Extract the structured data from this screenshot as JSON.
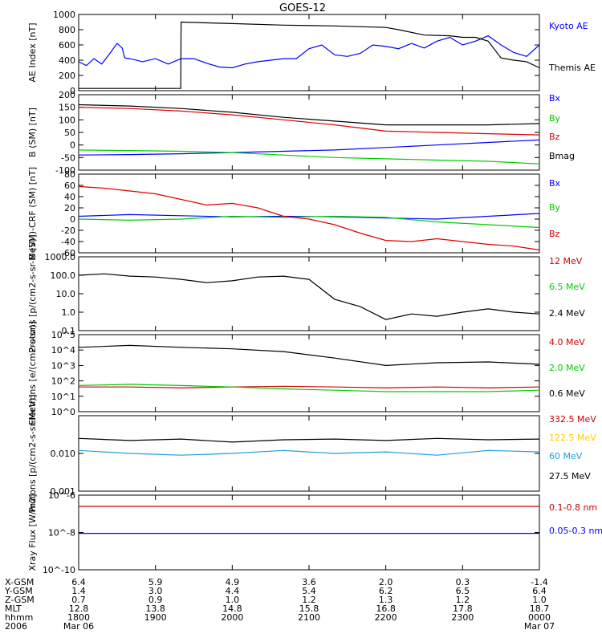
{
  "title": "GOES-12",
  "chart_data": [
    {
      "type": "line",
      "ylabel": "AE Index [nT]",
      "ylim": [
        0,
        1000
      ],
      "yscale": "linear",
      "ytick_labels": [
        "0",
        "200",
        "400",
        "600",
        "800",
        "1000"
      ],
      "ytick_values": [
        0,
        200,
        400,
        600,
        800,
        1000
      ],
      "series": [
        {
          "name": "Kyoto AE",
          "color": "#0000ff",
          "x": [
            0,
            3,
            6,
            9,
            12,
            15,
            17,
            18,
            20,
            25,
            30,
            35,
            40,
            45,
            50,
            55,
            60,
            65,
            70,
            75,
            80,
            85,
            90,
            95,
            100,
            105,
            110,
            115,
            120,
            125,
            130,
            135,
            140,
            145,
            150,
            155,
            160,
            165,
            170,
            175,
            180
          ],
          "y": [
            380,
            330,
            420,
            350,
            480,
            620,
            560,
            430,
            420,
            380,
            420,
            350,
            420,
            420,
            360,
            310,
            300,
            350,
            380,
            400,
            420,
            420,
            550,
            600,
            470,
            450,
            490,
            600,
            580,
            550,
            620,
            560,
            650,
            700,
            600,
            650,
            720,
            600,
            500,
            450,
            600
          ]
        },
        {
          "name": "Themis AE",
          "color": "#000000",
          "x": [
            0,
            20,
            39.9,
            40,
            60,
            80,
            100,
            120,
            125,
            135,
            145,
            150,
            155,
            160,
            165,
            170,
            175,
            180
          ],
          "y": [
            30,
            30,
            30,
            900,
            880,
            860,
            850,
            830,
            800,
            730,
            720,
            700,
            700,
            650,
            430,
            400,
            380,
            300
          ]
        }
      ]
    },
    {
      "type": "line",
      "ylabel": "B (SM) [nT]",
      "ylim": [
        -100,
        200
      ],
      "yscale": "linear",
      "ytick_labels": [
        "-100",
        "-50",
        "0",
        "50",
        "100",
        "150",
        "200"
      ],
      "ytick_values": [
        -100,
        -50,
        0,
        50,
        100,
        150,
        200
      ],
      "series": [
        {
          "name": "Bx",
          "color": "#0000ff",
          "x": [
            0,
            20,
            40,
            60,
            80,
            100,
            120,
            140,
            160,
            180
          ],
          "y": [
            -40,
            -38,
            -35,
            -30,
            -25,
            -20,
            -10,
            0,
            10,
            20
          ]
        },
        {
          "name": "By",
          "color": "#00cc00",
          "x": [
            0,
            20,
            40,
            60,
            80,
            100,
            120,
            140,
            160,
            180
          ],
          "y": [
            -20,
            -22,
            -25,
            -30,
            -40,
            -50,
            -55,
            -60,
            -65,
            -75
          ]
        },
        {
          "name": "Bz",
          "color": "#dd0000",
          "x": [
            0,
            20,
            40,
            60,
            80,
            100,
            120,
            140,
            160,
            180
          ],
          "y": [
            150,
            145,
            135,
            120,
            100,
            80,
            55,
            50,
            45,
            40
          ]
        },
        {
          "name": "Bmag",
          "color": "#000000",
          "x": [
            0,
            20,
            40,
            60,
            80,
            100,
            120,
            140,
            160,
            180
          ],
          "y": [
            160,
            155,
            145,
            130,
            110,
            95,
            80,
            80,
            80,
            85
          ]
        }
      ]
    },
    {
      "type": "line",
      "ylabel": "B (SM)-CRF (SM) [nT]",
      "ylim": [
        -60,
        80
      ],
      "yscale": "linear",
      "ytick_labels": [
        "-60",
        "-40",
        "-20",
        "0",
        "20",
        "40",
        "60",
        "80"
      ],
      "ytick_values": [
        -60,
        -40,
        -20,
        0,
        20,
        40,
        60,
        80
      ],
      "series": [
        {
          "name": "Bx",
          "color": "#0000ff",
          "x": [
            0,
            20,
            40,
            60,
            80,
            100,
            120,
            140,
            160,
            180
          ],
          "y": [
            5,
            8,
            6,
            4,
            5,
            4,
            2,
            0,
            5,
            10
          ]
        },
        {
          "name": "By",
          "color": "#00cc00",
          "x": [
            0,
            20,
            40,
            60,
            80,
            100,
            120,
            140,
            160,
            180
          ],
          "y": [
            0,
            -2,
            0,
            5,
            3,
            5,
            3,
            -5,
            -10,
            -15
          ]
        },
        {
          "name": "Bz",
          "color": "#dd0000",
          "x": [
            0,
            10,
            20,
            30,
            40,
            50,
            60,
            70,
            80,
            90,
            100,
            110,
            120,
            130,
            140,
            150,
            160,
            170,
            180
          ],
          "y": [
            58,
            55,
            50,
            45,
            35,
            25,
            28,
            20,
            5,
            0,
            -10,
            -25,
            -38,
            -40,
            -35,
            -40,
            -45,
            -48,
            -55
          ]
        }
      ]
    },
    {
      "type": "line",
      "ylabel": "Protons [p/(cm2-s-sr-MeV)]",
      "ylim": [
        0.1,
        1000
      ],
      "yscale": "log",
      "ytick_labels": [
        "0.1",
        "1.0",
        "10.0",
        "100.0",
        "1000.0"
      ],
      "ytick_values": [
        0.1,
        1,
        10,
        100,
        1000
      ],
      "series": [
        {
          "name": "12 MeV",
          "color": "#cc0000",
          "x": [],
          "y": []
        },
        {
          "name": "6.5 MeV",
          "color": "#00cc00",
          "x": [],
          "y": []
        },
        {
          "name": "2.4 MeV",
          "color": "#000000",
          "x": [
            0,
            10,
            20,
            30,
            40,
            50,
            60,
            70,
            80,
            90,
            100,
            110,
            120,
            130,
            140,
            150,
            160,
            170,
            180
          ],
          "y": [
            100,
            120,
            90,
            80,
            60,
            40,
            50,
            80,
            90,
            60,
            5,
            2,
            0.4,
            0.8,
            0.6,
            1,
            1.5,
            1,
            0.8
          ]
        }
      ]
    },
    {
      "type": "line",
      "ylabel": "Electrons [e/(cm2-s-sr)]",
      "ylim": [
        1,
        100000
      ],
      "yscale": "log",
      "ytick_labels": [
        "10^0",
        "10^1",
        "10^2",
        "10^3",
        "10^4",
        "10^5"
      ],
      "ytick_values": [
        1,
        10,
        100,
        1000,
        10000,
        100000
      ],
      "series": [
        {
          "name": "4.0 MeV",
          "color": "#cc0000",
          "x": [
            0,
            20,
            40,
            60,
            80,
            100,
            120,
            140,
            160,
            180
          ],
          "y": [
            40,
            40,
            35,
            40,
            45,
            40,
            35,
            40,
            35,
            40
          ]
        },
        {
          "name": "2.0 MeV",
          "color": "#00cc00",
          "x": [
            0,
            20,
            40,
            60,
            80,
            100,
            120,
            140,
            160,
            180
          ],
          "y": [
            50,
            60,
            50,
            40,
            30,
            25,
            20,
            20,
            20,
            25
          ]
        },
        {
          "name": "0.6 MeV",
          "color": "#000000",
          "x": [
            0,
            20,
            40,
            60,
            80,
            100,
            120,
            140,
            160,
            180
          ],
          "y": [
            15000,
            20000,
            15000,
            12000,
            8000,
            3000,
            1000,
            1500,
            1700,
            1200
          ]
        }
      ]
    },
    {
      "type": "line",
      "ylabel": "Protons [p/(cm2-s-sr-MeV)]",
      "ylim": [
        0.001,
        0.1
      ],
      "yscale": "log",
      "ytick_labels": [
        "0.001",
        "0.010"
      ],
      "ytick_values": [
        0.001,
        0.01
      ],
      "series": [
        {
          "name": "332.5 MeV",
          "color": "#cc0000",
          "x": [],
          "y": []
        },
        {
          "name": "122.5 MeV",
          "color": "#ffcc00",
          "x": [],
          "y": []
        },
        {
          "name": "60 MeV",
          "color": "#1ea0d8",
          "x": [
            0,
            20,
            40,
            60,
            80,
            100,
            120,
            140,
            160,
            180
          ],
          "y": [
            0.012,
            0.01,
            0.009,
            0.01,
            0.012,
            0.01,
            0.011,
            0.009,
            0.012,
            0.011
          ]
        },
        {
          "name": "27.5 MeV",
          "color": "#000000",
          "x": [
            0,
            20,
            40,
            60,
            80,
            100,
            120,
            140,
            160,
            180
          ],
          "y": [
            0.025,
            0.022,
            0.024,
            0.02,
            0.023,
            0.024,
            0.022,
            0.025,
            0.023,
            0.024
          ]
        }
      ]
    },
    {
      "type": "line",
      "ylabel": "Xray Flux [W/m2]",
      "ylim": [
        1e-10,
        1e-06
      ],
      "yscale": "log",
      "ytick_labels": [
        "10^-10",
        "10^-8",
        "10^-6"
      ],
      "ytick_values": [
        1e-10,
        1e-08,
        1e-06
      ],
      "series": [
        {
          "name": "0.1-0.8 nm",
          "color": "#cc0000",
          "x": [
            0,
            180
          ],
          "y": [
            2.5e-07,
            2.5e-07
          ]
        },
        {
          "name": "0.05-0.3 nm",
          "color": "#0000ff",
          "x": [
            0,
            180
          ],
          "y": [
            9e-09,
            9e-09
          ]
        }
      ]
    }
  ],
  "xaxis": {
    "xlim": [
      0,
      180
    ],
    "row_labels": [
      "X-GSM",
      "Y-GSM",
      "Z-GSM",
      "MLT",
      "hhmm",
      "2006"
    ],
    "columns": [
      {
        "x": 0,
        "vals": [
          "6.4",
          "1.4",
          "0.7",
          "12.8",
          "1800",
          "Mar 06"
        ]
      },
      {
        "x": 30,
        "vals": [
          "5.9",
          "3.0",
          "0.9",
          "13.8",
          "1900",
          ""
        ]
      },
      {
        "x": 60,
        "vals": [
          "4.9",
          "4.4",
          "1.0",
          "14.8",
          "2000",
          ""
        ]
      },
      {
        "x": 90,
        "vals": [
          "3.6",
          "5.4",
          "1.2",
          "15.8",
          "2100",
          ""
        ]
      },
      {
        "x": 120,
        "vals": [
          "2.0",
          "6.2",
          "1.3",
          "16.8",
          "2200",
          ""
        ]
      },
      {
        "x": 150,
        "vals": [
          "0.3",
          "6.5",
          "1.2",
          "17.8",
          "2300",
          ""
        ]
      },
      {
        "x": 180,
        "vals": [
          "-1.4",
          "6.4",
          "1.0",
          "18.7",
          "0000",
          "Mar 07"
        ]
      }
    ]
  }
}
